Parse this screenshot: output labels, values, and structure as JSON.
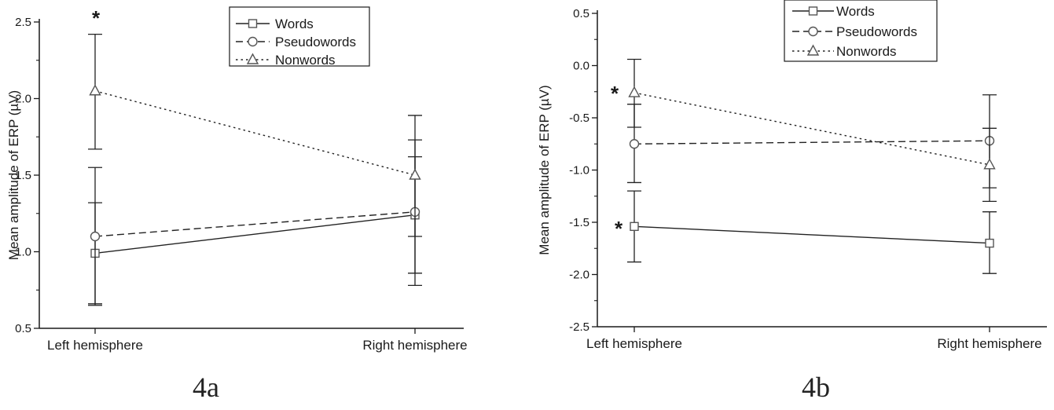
{
  "chart_data": [
    {
      "type": "line",
      "panel_label": "4a",
      "ylabel": "Mean amplitude of ERP (µV)",
      "ylim": [
        0.5,
        2.5
      ],
      "yticks": [
        "0.5",
        "1.0",
        "1.5",
        "2.0",
        "2.5"
      ],
      "categories": [
        "Left hemisphere",
        "Right hemisphere"
      ],
      "legend": {
        "placement": "top-right",
        "markers": [
          "square",
          "circle",
          "triangle"
        ]
      },
      "significance": [
        {
          "category": "Left hemisphere",
          "label": "*"
        }
      ],
      "series": [
        {
          "name": "Words",
          "style": "solid",
          "marker": "square",
          "values": [
            0.99,
            1.24
          ],
          "err_low": [
            0.66,
            0.86
          ],
          "err_high": [
            1.32,
            1.62
          ]
        },
        {
          "name": "Pseudowords",
          "style": "dashed",
          "marker": "circle",
          "values": [
            1.1,
            1.26
          ],
          "err_low": [
            0.65,
            0.78
          ],
          "err_high": [
            1.55,
            1.73
          ]
        },
        {
          "name": "Nonwords",
          "style": "dotted",
          "marker": "triangle",
          "values": [
            2.05,
            1.5
          ],
          "err_low": [
            1.67,
            1.1
          ],
          "err_high": [
            2.42,
            1.89
          ]
        }
      ]
    },
    {
      "type": "line",
      "panel_label": "4b",
      "ylabel": "Mean amplitude of ERP (µV)",
      "ylim": [
        -2.5,
        0.5
      ],
      "yticks": [
        "-2.5",
        "-2.0",
        "-1.5",
        "-1.0",
        "-0.5",
        "0.0",
        "0.5"
      ],
      "categories": [
        "Left hemisphere",
        "Right hemisphere"
      ],
      "legend": {
        "placement": "top-center",
        "markers": [
          "square",
          "circle",
          "triangle"
        ]
      },
      "significance": [
        {
          "category": "Left hemisphere",
          "label": "*"
        },
        {
          "category": "Left hemisphere",
          "label": "*"
        }
      ],
      "series": [
        {
          "name": "Words",
          "style": "solid",
          "marker": "square",
          "values": [
            -1.54,
            -1.7
          ],
          "err_low": [
            -1.88,
            -1.99
          ],
          "err_high": [
            -1.2,
            -1.4
          ]
        },
        {
          "name": "Pseudowords",
          "style": "dashed",
          "marker": "circle",
          "values": [
            -0.75,
            -0.72
          ],
          "err_low": [
            -1.12,
            -1.17
          ],
          "err_high": [
            -0.37,
            -0.6
          ]
        },
        {
          "name": "Nonwords",
          "style": "dotted",
          "marker": "triangle",
          "values": [
            -0.26,
            -0.95
          ],
          "err_low": [
            -0.59,
            -1.3
          ],
          "err_high": [
            0.06,
            -0.28
          ]
        }
      ]
    }
  ]
}
